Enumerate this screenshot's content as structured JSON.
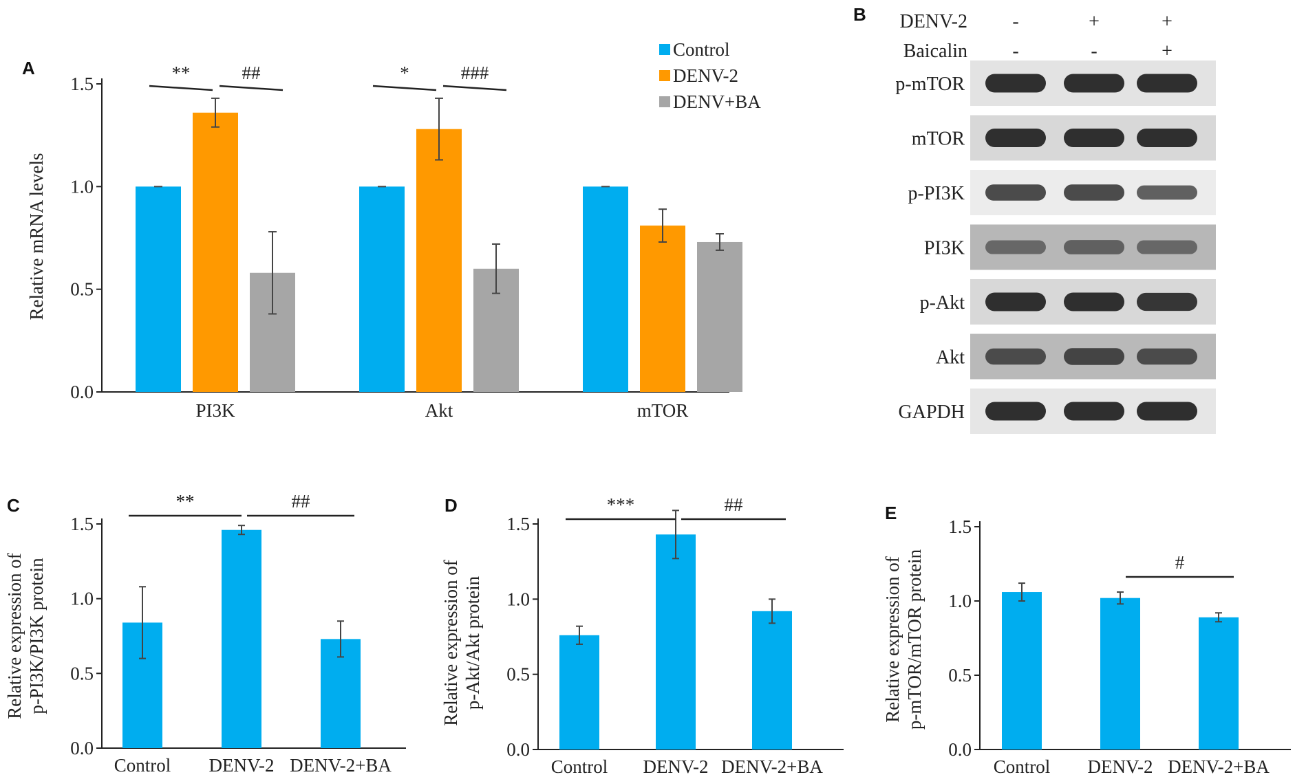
{
  "colors": {
    "control": "#00adef",
    "denv2": "#ff9900",
    "denvba": "#a6a6a6",
    "protein_bar": "#00adef"
  },
  "chart_data": [
    {
      "panel": "A",
      "type": "bar",
      "ylabel": "Relative mRNA levels",
      "ylim": [
        0,
        1.5
      ],
      "yticks": [
        "0.0",
        "0.5",
        "1.0",
        "1.5"
      ],
      "categories": [
        "PI3K",
        "Akt",
        "mTOR"
      ],
      "legend": "top-right",
      "series": [
        {
          "name": "Control",
          "values": [
            1.0,
            1.0,
            1.0
          ],
          "errors": [
            0.0,
            0.0,
            0.0
          ]
        },
        {
          "name": "DENV-2",
          "values": [
            1.36,
            1.28,
            0.81
          ],
          "errors": [
            0.07,
            0.15,
            0.08
          ]
        },
        {
          "name": "DENV+BA",
          "values": [
            0.58,
            0.6,
            0.73
          ],
          "errors": [
            0.2,
            0.12,
            0.04
          ]
        }
      ],
      "significance": [
        {
          "label": "**",
          "group": 0,
          "from": 0,
          "to": 1
        },
        {
          "label": "##",
          "group": 0,
          "from": 1,
          "to": 2
        },
        {
          "label": "*",
          "group": 1,
          "from": 0,
          "to": 1
        },
        {
          "label": "###",
          "group": 1,
          "from": 1,
          "to": 2
        }
      ]
    },
    {
      "panel": "C",
      "type": "bar",
      "ylabel_lines": [
        "Relative expression of",
        "p-PI3K/PI3K protein"
      ],
      "ylim": [
        0,
        1.5
      ],
      "yticks": [
        "0.0",
        "0.5",
        "1.0",
        "1.5"
      ],
      "categories": [
        "Control",
        "DENV-2",
        "DENV-2+BA"
      ],
      "values": [
        0.84,
        1.46,
        0.73
      ],
      "errors": [
        0.24,
        0.03,
        0.12
      ],
      "significance": [
        {
          "label": "**",
          "from": 0,
          "to": 1
        },
        {
          "label": "##",
          "from": 1,
          "to": 2
        }
      ]
    },
    {
      "panel": "D",
      "type": "bar",
      "ylabel_lines": [
        "Relative expression of",
        "p-Akt/Akt protein"
      ],
      "ylim": [
        0,
        1.5
      ],
      "yticks": [
        "0.0",
        "0.5",
        "1.0",
        "1.5"
      ],
      "categories": [
        "Control",
        "DENV-2",
        "DENV-2+BA"
      ],
      "values": [
        0.76,
        1.43,
        0.92
      ],
      "errors": [
        0.06,
        0.16,
        0.08
      ],
      "significance": [
        {
          "label": "***",
          "from": 0,
          "to": 1
        },
        {
          "label": "##",
          "from": 1,
          "to": 2
        }
      ]
    },
    {
      "panel": "E",
      "type": "bar",
      "ylabel_lines": [
        "Relative expression of",
        "p-mTOR/mTOR protein"
      ],
      "ylim": [
        0,
        1.5
      ],
      "yticks": [
        "0.0",
        "0.5",
        "1.0",
        "1.5"
      ],
      "categories": [
        "Control",
        "DENV-2",
        "DENV-2+BA"
      ],
      "values": [
        1.06,
        1.02,
        0.89
      ],
      "errors": [
        0.06,
        0.04,
        0.03
      ],
      "significance": [
        {
          "label": "#",
          "from": 1,
          "to": 2
        }
      ]
    }
  ],
  "blot": {
    "panel": "B",
    "conditions": [
      {
        "name": "DENV-2",
        "signs": [
          "-",
          "+",
          "+"
        ]
      },
      {
        "name": "Baicalin",
        "signs": [
          "-",
          "-",
          "+"
        ]
      }
    ],
    "rows": [
      {
        "label": "p-mTOR",
        "intensity": [
          0.95,
          0.95,
          0.95
        ],
        "background": "#e3e3e3"
      },
      {
        "label": "mTOR",
        "intensity": [
          0.95,
          0.95,
          0.95
        ],
        "background": "#d8d8d8"
      },
      {
        "label": "p-PI3K",
        "intensity": [
          0.75,
          0.75,
          0.6
        ],
        "background": "#ececec"
      },
      {
        "label": "PI3K",
        "intensity": [
          0.55,
          0.6,
          0.55
        ],
        "background": "#b7b7b7"
      },
      {
        "label": "p-Akt",
        "intensity": [
          0.95,
          0.95,
          0.9
        ],
        "background": "#d8d8d8"
      },
      {
        "label": "Akt",
        "intensity": [
          0.75,
          0.8,
          0.75
        ],
        "background": "#b9b9b9"
      },
      {
        "label": "GAPDH",
        "intensity": [
          0.95,
          0.95,
          0.95
        ],
        "background": "#e6e6e6"
      }
    ]
  }
}
